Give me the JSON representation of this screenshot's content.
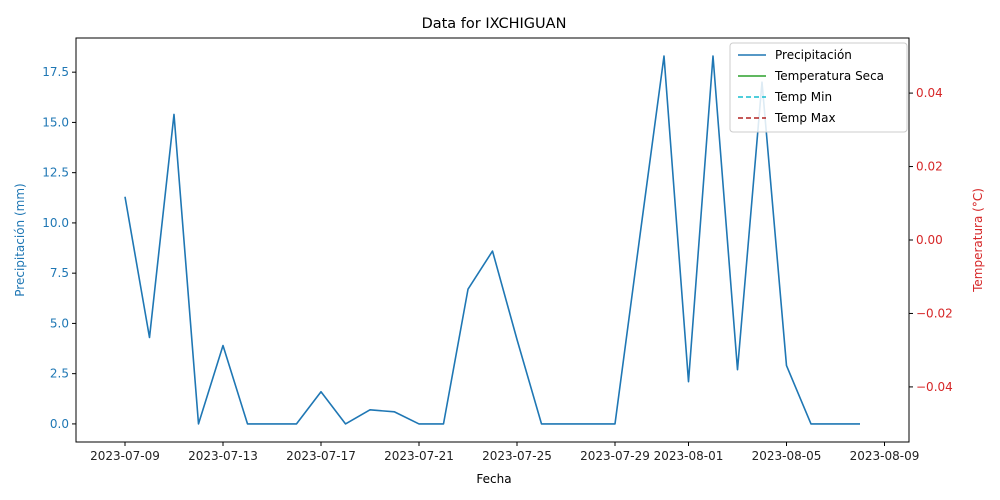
{
  "chart_data": {
    "type": "line",
    "title": "Data for IXCHIGUAN",
    "xlabel": "Fecha",
    "ylabel_left": "Precipitación (mm)",
    "ylabel_right": "Temperatura (°C)",
    "left_color": "#1f77b4",
    "right_color": "#d62728",
    "x_ticks": [
      "2023-07-09",
      "2023-07-13",
      "2023-07-17",
      "2023-07-21",
      "2023-07-25",
      "2023-07-29",
      "2023-08-01",
      "2023-08-05",
      "2023-08-09"
    ],
    "y_left_ticks": [
      "0.0",
      "2.5",
      "5.0",
      "7.5",
      "10.0",
      "12.5",
      "15.0",
      "17.5"
    ],
    "y_right_ticks": [
      "−0.04",
      "−0.02",
      "0.00",
      "0.02",
      "0.04"
    ],
    "ylim_left": [
      -0.9,
      19.2
    ],
    "ylim_right": [
      -0.055,
      0.055
    ],
    "xlim": [
      "2023-07-07",
      "2023-08-10"
    ],
    "legend": {
      "placement": "upper right",
      "entries": [
        {
          "label": "Precipitación",
          "color": "#1f77b4",
          "style": "solid"
        },
        {
          "label": "Temperatura Seca",
          "color": "#2ca02c",
          "style": "solid"
        },
        {
          "label": "Temp Min",
          "color": "#17becf",
          "style": "dashed"
        },
        {
          "label": "Temp Max",
          "color": "#b22222",
          "style": "dashed"
        }
      ]
    },
    "series": [
      {
        "name": "Precipitación",
        "axis": "left",
        "color": "#1f77b4",
        "x": [
          "2023-07-09",
          "2023-07-10",
          "2023-07-11",
          "2023-07-12",
          "2023-07-13",
          "2023-07-14",
          "2023-07-15",
          "2023-07-16",
          "2023-07-17",
          "2023-07-18",
          "2023-07-19",
          "2023-07-20",
          "2023-07-21",
          "2023-07-22",
          "2023-07-23",
          "2023-07-24",
          "2023-07-25",
          "2023-07-26",
          "2023-07-27",
          "2023-07-28",
          "2023-07-29",
          "2023-07-30",
          "2023-07-31",
          "2023-08-01",
          "2023-08-02",
          "2023-08-03",
          "2023-08-04",
          "2023-08-05",
          "2023-08-06",
          "2023-08-07",
          "2023-08-08"
        ],
        "values": [
          11.3,
          4.3,
          15.4,
          0.0,
          3.9,
          0.0,
          0.0,
          0.0,
          1.6,
          0.0,
          0.7,
          0.6,
          0.0,
          0.0,
          6.7,
          8.6,
          4.2,
          0.0,
          0.0,
          0.0,
          0.0,
          9.2,
          18.3,
          2.1,
          18.3,
          2.7,
          17.0,
          2.9,
          0.0,
          0.0,
          0.0
        ]
      },
      {
        "name": "Temperatura Seca",
        "axis": "right",
        "color": "#2ca02c",
        "values": []
      },
      {
        "name": "Temp Min",
        "axis": "right",
        "color": "#17becf",
        "values": []
      },
      {
        "name": "Temp Max",
        "axis": "right",
        "color": "#b22222",
        "values": []
      }
    ]
  }
}
